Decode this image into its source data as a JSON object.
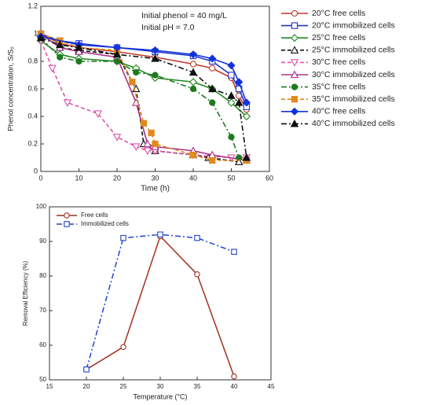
{
  "chart_data": [
    {
      "type": "line",
      "xlabel": "Time (h)",
      "ylabel": "Phenol concentration, S/S₀",
      "annotations": [
        "Initial phenol = 40 mg/L",
        "Initial pH = 7.0"
      ],
      "xlim": [
        0,
        60
      ],
      "xticks": [
        0,
        10,
        20,
        30,
        40,
        50,
        60
      ],
      "ylim": [
        0,
        1.2
      ],
      "yticks": [
        0,
        0.2,
        0.4,
        0.6,
        0.8,
        1,
        1.2
      ],
      "legend": "right",
      "series": [
        {
          "name": "20°C free cells",
          "color": "#c0392b",
          "marker": "circle",
          "filled": false,
          "dash": "solid",
          "x": [
            0,
            5,
            10,
            20,
            30,
            40,
            45,
            50,
            52,
            54
          ],
          "values": [
            1,
            0.93,
            0.9,
            0.87,
            0.83,
            0.78,
            0.75,
            0.68,
            0.55,
            0.45
          ]
        },
        {
          "name": "20°C immobilized cells",
          "color": "#2233cc",
          "marker": "square",
          "filled": false,
          "dash": "solid",
          "x": [
            0,
            5,
            10,
            20,
            30,
            40,
            45,
            50,
            52,
            54
          ],
          "values": [
            1,
            0.95,
            0.93,
            0.9,
            0.87,
            0.84,
            0.8,
            0.7,
            0.6,
            0.47
          ]
        },
        {
          "name": "25°C free cells",
          "color": "#228822",
          "marker": "diamond",
          "filled": false,
          "dash": "solid",
          "x": [
            0,
            5,
            10,
            20,
            25,
            30,
            40,
            45,
            50,
            54
          ],
          "values": [
            0.95,
            0.85,
            0.82,
            0.8,
            0.75,
            0.68,
            0.65,
            0.6,
            0.5,
            0.4
          ]
        },
        {
          "name": "25°C immobilized cells",
          "color": "#111111",
          "marker": "triangle",
          "filled": false,
          "dash": "dash",
          "x": [
            0,
            5,
            10,
            20,
            25,
            27,
            30,
            40,
            44,
            52
          ],
          "values": [
            1,
            0.9,
            0.88,
            0.85,
            0.6,
            0.2,
            0.15,
            0.12,
            0.1,
            0.07
          ]
        },
        {
          "name": "30°C free cells",
          "color": "#dd55aa",
          "marker": "triangle-down",
          "filled": false,
          "dash": "dash",
          "x": [
            0,
            3,
            7,
            15,
            20,
            25,
            28,
            30,
            40,
            50,
            54
          ],
          "values": [
            0.95,
            0.75,
            0.5,
            0.42,
            0.25,
            0.18,
            0.15,
            0.15,
            0.12,
            0.1,
            0.1
          ]
        },
        {
          "name": "30°C immobilized cells",
          "color": "#aa3388",
          "marker": "triangle",
          "filled": false,
          "dash": "solid",
          "x": [
            0,
            5,
            10,
            20,
            25,
            28,
            30,
            40,
            45,
            54
          ],
          "values": [
            1,
            0.9,
            0.87,
            0.83,
            0.5,
            0.2,
            0.18,
            0.15,
            0.12,
            0.08
          ]
        },
        {
          "name": "35°C free cells",
          "color": "#1e7a1e",
          "marker": "circle",
          "filled": true,
          "dash": "dashdot",
          "x": [
            0,
            5,
            10,
            20,
            25,
            30,
            40,
            45,
            50,
            52
          ],
          "values": [
            0.97,
            0.83,
            0.8,
            0.8,
            0.72,
            0.7,
            0.6,
            0.5,
            0.25,
            0.1
          ]
        },
        {
          "name": "35°C immobilized cells",
          "color": "#e08a1e",
          "marker": "square",
          "filled": true,
          "dash": "dash",
          "x": [
            0,
            5,
            10,
            20,
            24,
            27,
            29,
            30,
            40,
            45,
            54
          ],
          "values": [
            1,
            0.95,
            0.9,
            0.88,
            0.65,
            0.35,
            0.28,
            0.2,
            0.12,
            0.08,
            0.08
          ]
        },
        {
          "name": "40°C free cells",
          "color": "#1133dd",
          "marker": "diamond",
          "filled": true,
          "dash": "solid",
          "x": [
            0,
            10,
            20,
            30,
            40,
            45,
            50,
            52,
            54
          ],
          "values": [
            0.98,
            0.92,
            0.9,
            0.88,
            0.85,
            0.82,
            0.77,
            0.65,
            0.5
          ]
        },
        {
          "name": "40°C immobilized cells",
          "color": "#111111",
          "marker": "triangle",
          "filled": true,
          "dash": "dashdot",
          "x": [
            0,
            5,
            10,
            20,
            30,
            40,
            45,
            50,
            52,
            54
          ],
          "values": [
            0.97,
            0.92,
            0.9,
            0.85,
            0.82,
            0.72,
            0.6,
            0.55,
            0.5,
            0.1
          ]
        }
      ]
    },
    {
      "type": "line",
      "xlabel": "Temperature (°C)",
      "ylabel": "Removal Efficiency (%)",
      "xlim": [
        15,
        45
      ],
      "xticks": [
        15,
        20,
        25,
        30,
        35,
        40,
        45
      ],
      "ylim": [
        50,
        100
      ],
      "yticks": [
        50,
        60,
        70,
        80,
        90,
        100
      ],
      "legend": "upper left",
      "series": [
        {
          "name": "Free cells",
          "color": "#a0301e",
          "marker": "circle",
          "filled": false,
          "dash": "solid",
          "x": [
            20,
            25,
            30,
            35,
            40
          ],
          "values": [
            53,
            59.5,
            91.5,
            80.5,
            51
          ]
        },
        {
          "name": "Immobilized cells",
          "color": "#2244cc",
          "marker": "square",
          "filled": false,
          "dash": "dashdot",
          "x": [
            20,
            25,
            30,
            35,
            40
          ],
          "values": [
            53,
            91,
            92,
            91,
            87
          ]
        }
      ]
    }
  ]
}
